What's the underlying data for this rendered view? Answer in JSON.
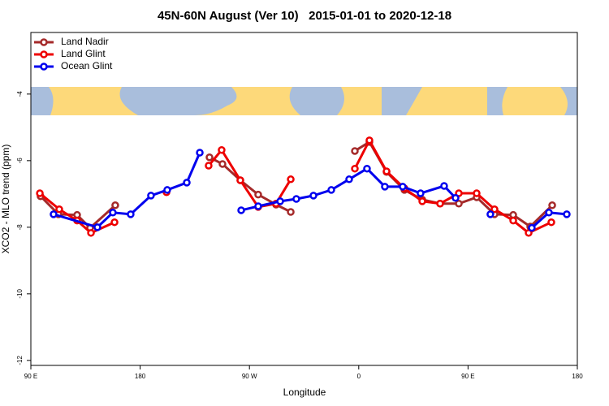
{
  "chart_data": {
    "type": "line",
    "title": "45N-60N August (Ver 10)   2015-01-01 to 2020-12-18",
    "x_label": "Longitude",
    "y_label": "XCO2 - MLO trend (ppm)",
    "xlim": [
      90,
      540
    ],
    "ylim": [
      -12.15,
      -2.15
    ],
    "xticks": [
      {
        "value": 90,
        "label": "90 E"
      },
      {
        "value": 180,
        "label": "180"
      },
      {
        "value": 270,
        "label": "90 W"
      },
      {
        "value": 360,
        "label": "0"
      },
      {
        "value": 450,
        "label": "90 E"
      },
      {
        "value": 540,
        "label": "180"
      }
    ],
    "yticks": [
      -4,
      -6,
      -8,
      -10,
      -12
    ],
    "legend": "top-left",
    "series": [
      {
        "name": "Land Nadir",
        "color": "#a52a2a",
        "x": [
          98,
          112.7,
          128.1,
          138.8,
          159.5,
          200,
          237.1,
          247.8,
          262.5,
          277.2,
          291.9,
          304,
          330,
          356.8,
          368.8,
          382.9,
          397.6,
          412.3,
          427,
          442.4,
          457.1,
          471.8,
          487.2,
          501.2,
          519.3
        ],
        "values": [
          -7.07,
          -7.61,
          -7.63,
          -8.02,
          -7.34,
          null,
          -5.9,
          -6.1,
          -6.59,
          -7.02,
          -7.32,
          -7.54,
          null,
          -5.71,
          -5.44,
          -6.34,
          -6.88,
          -7.17,
          -7.29,
          -7.29,
          -7.1,
          -7.61,
          -7.63,
          -7.98,
          -7.34
        ]
      },
      {
        "name": "Land Glint",
        "color": "#ee0000",
        "x": [
          97.4,
          113.4,
          128.1,
          139.5,
          158.9,
          180,
          201.7,
          220,
          236.4,
          247.1,
          262.5,
          277.2,
          291.9,
          304,
          330,
          356.8,
          368.8,
          382.9,
          397.6,
          412.3,
          427,
          442.4,
          457.1,
          471.8,
          487.2,
          499.9,
          518.6
        ],
        "values": [
          -6.98,
          -7.46,
          -7.8,
          -8.17,
          -7.85,
          null,
          -6.95,
          null,
          -6.15,
          -5.68,
          -6.59,
          -7.39,
          -7.29,
          -6.56,
          null,
          -6.24,
          -5.39,
          -6.32,
          -6.83,
          -7.22,
          -7.29,
          -6.98,
          -6.98,
          -7.46,
          -7.8,
          -8.17,
          -7.85
        ]
      },
      {
        "name": "Ocean Glint",
        "color": "#0000ee",
        "x": [
          108.7,
          144.8,
          157.5,
          172.2,
          188.9,
          202.3,
          218.4,
          229.1,
          250,
          263.2,
          277.2,
          295.3,
          308.6,
          322.7,
          337.4,
          352.1,
          366.8,
          381.5,
          396.2,
          410.9,
          430.3,
          439.7,
          455,
          468.4,
          485,
          502.5,
          516.6,
          531.3
        ],
        "values": [
          -7.61,
          -8.0,
          -7.56,
          -7.61,
          -7.05,
          -6.88,
          -6.66,
          -5.76,
          null,
          -7.49,
          -7.37,
          -7.22,
          -7.15,
          -7.05,
          -6.88,
          -6.56,
          -6.24,
          -6.78,
          -6.78,
          -6.98,
          -6.76,
          -7.12,
          null,
          -7.61,
          null,
          -8.02,
          -7.56,
          -7.61
        ]
      }
    ]
  }
}
